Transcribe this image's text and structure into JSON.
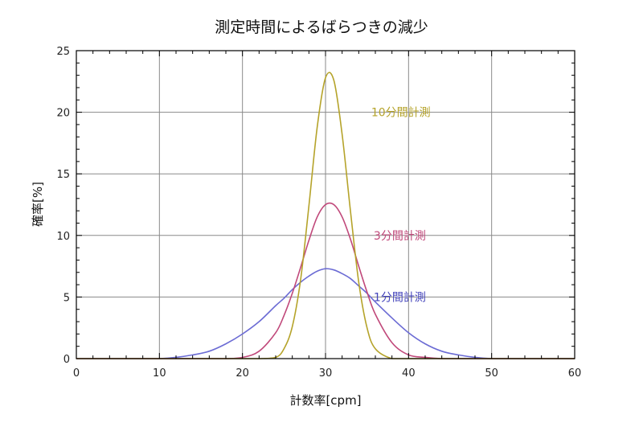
{
  "chart_data": {
    "type": "line",
    "title": "測定時間によるばらつきの減少",
    "xlabel": "計数率[cpm]",
    "ylabel": "確率[%]",
    "xlim": [
      0,
      60
    ],
    "ylim": [
      0,
      25
    ],
    "x_ticks": [
      0,
      10,
      20,
      30,
      40,
      50,
      60
    ],
    "y_ticks": [
      0,
      5,
      10,
      15,
      20,
      25
    ],
    "grid": true,
    "x": [
      0,
      2,
      4,
      6,
      8,
      10,
      12,
      14,
      16,
      18,
      20,
      22,
      24,
      25,
      26,
      27,
      28,
      29,
      30,
      31,
      32,
      33,
      34,
      35,
      36,
      38,
      40,
      42,
      44,
      46,
      48,
      50,
      52,
      54,
      56,
      58,
      60
    ],
    "series": [
      {
        "name": "1分間計測",
        "color": "#6b6bd4",
        "values": [
          0,
          0,
          0,
          0,
          0,
          0,
          0.1,
          0.3,
          0.6,
          1.2,
          2.0,
          3.0,
          4.3,
          4.9,
          5.6,
          6.2,
          6.7,
          7.1,
          7.3,
          7.2,
          6.9,
          6.5,
          5.9,
          5.3,
          4.6,
          3.3,
          2.1,
          1.2,
          0.6,
          0.3,
          0.1,
          0,
          0,
          0,
          0,
          0,
          0
        ]
      },
      {
        "name": "3分間計測",
        "color": "#c0487a",
        "values": [
          0,
          0,
          0,
          0,
          0,
          0,
          0,
          0,
          0,
          0,
          0.1,
          0.6,
          2.1,
          3.5,
          5.3,
          7.4,
          9.6,
          11.5,
          12.5,
          12.5,
          11.5,
          9.7,
          7.5,
          5.4,
          3.6,
          1.3,
          0.3,
          0.1,
          0,
          0,
          0,
          0,
          0,
          0,
          0,
          0,
          0
        ]
      },
      {
        "name": "10分間計測",
        "color": "#b5a32a",
        "values": [
          0,
          0,
          0,
          0,
          0,
          0,
          0,
          0,
          0,
          0,
          0,
          0,
          0.1,
          0.8,
          2.6,
          6.4,
          12.4,
          18.8,
          22.8,
          22.6,
          18.2,
          12.0,
          6.2,
          2.5,
          0.8,
          0,
          0,
          0,
          0,
          0,
          0,
          0,
          0,
          0,
          0,
          0,
          0
        ]
      }
    ],
    "annotations": [
      {
        "text": "10分間計測",
        "x": 35.5,
        "y": 20,
        "color": "#b5a32a"
      },
      {
        "text": "3分間計測",
        "x": 35.8,
        "y": 10,
        "color": "#c0487a"
      },
      {
        "text": "1分間計測",
        "x": 35.8,
        "y": 5,
        "color": "#4444bb"
      }
    ]
  }
}
